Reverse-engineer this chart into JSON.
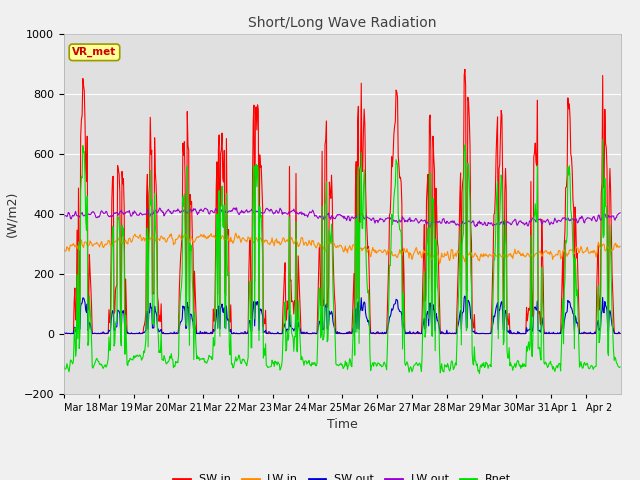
{
  "title": "Short/Long Wave Radiation",
  "xlabel": "Time",
  "ylabel": "(W/m2)",
  "ylim": [
    -200,
    1000
  ],
  "n_days": 16,
  "xtick_labels": [
    "Mar 18",
    "Mar 19",
    "Mar 20",
    "Mar 21",
    "Mar 22",
    "Mar 23",
    "Mar 24",
    "Mar 25",
    "Mar 26",
    "Mar 27",
    "Mar 28",
    "Mar 29",
    "Mar 30",
    "Mar 31",
    "Apr 1",
    "Apr 2"
  ],
  "legend_labels": [
    "SW in",
    "LW in",
    "SW out",
    "LW out",
    "Rnet"
  ],
  "colors": {
    "SW_in": "#ff0000",
    "LW_in": "#ff8c00",
    "SW_out": "#0000cc",
    "LW_out": "#9900cc",
    "Rnet": "#00dd00"
  },
  "annotation_text": "VR_met",
  "annotation_color": "#cc0000",
  "annotation_bg": "#ffff99",
  "annotation_edge": "#999900",
  "fig_bg": "#f0f0f0",
  "plot_bg": "#e0e0e0",
  "title_color": "#404040",
  "grid_color": "#ffffff",
  "yticks": [
    -200,
    0,
    200,
    400,
    600,
    800,
    1000
  ],
  "dt_minutes": 30
}
